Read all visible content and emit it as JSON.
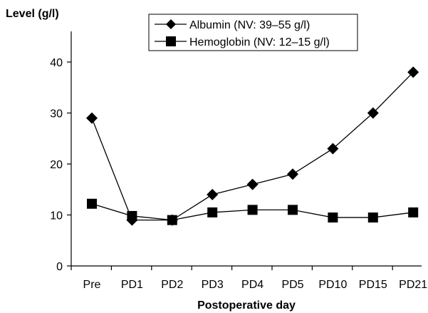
{
  "chart_data": {
    "type": "line",
    "ylabel": "Level (g/l)",
    "xlabel": "Postoperative day",
    "categories": [
      "Pre",
      "PD1",
      "PD2",
      "PD3",
      "PD4",
      "PD5",
      "PD10",
      "PD15",
      "PD21"
    ],
    "ylim": [
      0,
      45
    ],
    "yticks": [
      "0",
      "10",
      "20",
      "30",
      "40"
    ],
    "grid": false,
    "legend_position": "top",
    "series": [
      {
        "name": "Albumin (NV: 39–55 g/l)",
        "marker": "diamond",
        "color": "#000000",
        "values": [
          29,
          9,
          9,
          14,
          16,
          18,
          23,
          30,
          38
        ]
      },
      {
        "name": "Hemoglobin (NV: 12–15 g/l)",
        "marker": "square",
        "color": "#000000",
        "values": [
          12.2,
          9.8,
          9,
          10.5,
          11,
          11,
          9.5,
          9.5,
          10.5
        ]
      }
    ]
  }
}
